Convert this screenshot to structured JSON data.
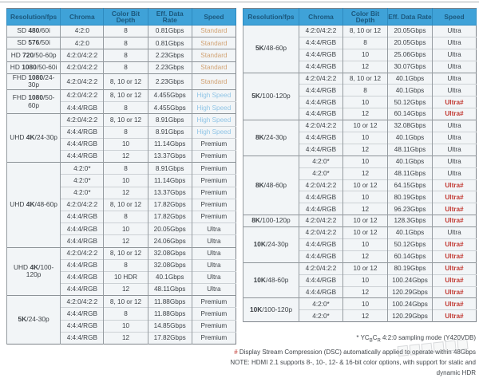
{
  "palette": {
    "header_bg": "#3fa2d8",
    "header_text": "#1b587d",
    "cell_bg": "#f2f5f7",
    "cell_text": "#3d4247",
    "speed_standard": "#d1a273",
    "speed_high": "#90c5e6",
    "speed_premium_ultra": "#3d4247",
    "speed_ultra_dsc": "#c23b34",
    "group_border": "#8d9398",
    "row_border": "#ccd1d5"
  },
  "columns": [
    "Resolution/fps",
    "Chroma",
    "Color Bit Depth",
    "Eff. Data Rate",
    "Speed"
  ],
  "tables": [
    {
      "id": "left",
      "groups": [
        {
          "res": [
            "SD ",
            "480",
            "/60i"
          ],
          "rows": [
            [
              "4:2:0",
              "8",
              "0.81Gbps",
              "Standard"
            ]
          ]
        },
        {
          "res": [
            "SD ",
            "576",
            "/50i"
          ],
          "rows": [
            [
              "4:2:0",
              "8",
              "0.81Gbps",
              "Standard"
            ]
          ]
        },
        {
          "res": [
            "HD ",
            "720",
            "/50-60p"
          ],
          "rows": [
            [
              "4:2:0/4:2:2",
              "8",
              "2.23Gbps",
              "Standard"
            ]
          ]
        },
        {
          "res": [
            "HD ",
            "1080",
            "/50-60i"
          ],
          "rows": [
            [
              "4:2:0/4:2:2",
              "8",
              "2.23Gbps",
              "Standard"
            ]
          ]
        },
        {
          "res": [
            "FHD ",
            "1080",
            "/24-30p"
          ],
          "rows": [
            [
              "4:2:0/4:2:2",
              "8, 10 or 12",
              "2.23Gbps",
              "Standard"
            ]
          ]
        },
        {
          "res": [
            "FHD ",
            "1080",
            "/50-60p"
          ],
          "rows": [
            [
              "4:2:0/4:2:2",
              "8, 10 or 12",
              "4.455Gbps",
              "High Speed"
            ],
            [
              "4:4:4/RGB",
              "8",
              "4.455Gbps",
              "High Speed"
            ]
          ]
        },
        {
          "res": [
            "UHD ",
            "4K",
            "/24-30p"
          ],
          "rows": [
            [
              "4:2:0/4:2:2",
              "8, 10 or 12",
              "8.91Gbps",
              "High Speed"
            ],
            [
              "4:4:4/RGB",
              "8",
              "8.91Gbps",
              "High Speed"
            ],
            [
              "4:4:4/RGB",
              "10",
              "11.14Gbps",
              "Premium"
            ],
            [
              "4:4:4/RGB",
              "12",
              "13.37Gbps",
              "Premium"
            ]
          ]
        },
        {
          "res": [
            "UHD ",
            "4K",
            "/48-60p"
          ],
          "rows": [
            [
              "4:2:0*",
              "8",
              "8.91Gbps",
              "Premium"
            ],
            [
              "4:2:0*",
              "10",
              "11.14Gbps",
              "Premium"
            ],
            [
              "4:2:0*",
              "12",
              "13.37Gbps",
              "Premium"
            ],
            [
              "4:2:0/4:2:2",
              "8, 10 or 12",
              "17.82Gbps",
              "Premium"
            ],
            [
              "4:4:4/RGB",
              "8",
              "17.82Gbps",
              "Premium"
            ],
            [
              "4:4:4/RGB",
              "10",
              "20.05Gbps",
              "Ultra"
            ],
            [
              "4:4:4/RGB",
              "12",
              "24.06Gbps",
              "Ultra"
            ]
          ]
        },
        {
          "res": [
            "UHD ",
            "4K",
            "/100-120p"
          ],
          "rows": [
            [
              "4:2:0/4:2:2",
              "8, 10 or 12",
              "32.08Gbps",
              "Ultra"
            ],
            [
              "4:4:4/RGB",
              "8",
              "32.08Gbps",
              "Ultra"
            ],
            [
              "4:4:4/RGB",
              "10 HDR",
              "40.1Gbps",
              "Ultra"
            ],
            [
              "4:4:4/RGB",
              "12",
              "48.11Gbps",
              "Ultra"
            ]
          ]
        },
        {
          "res": [
            "",
            "5K",
            "/24-30p"
          ],
          "rows": [
            [
              "4:2:0/4:2:2",
              "8, 10 or 12",
              "11.88Gbps",
              "Premium"
            ],
            [
              "4:4:4/RGB",
              "8",
              "11.88Gbps",
              "Premium"
            ],
            [
              "4:4:4/RGB",
              "10",
              "14.85Gbps",
              "Premium"
            ],
            [
              "4:4:4/RGB",
              "12",
              "17.82Gbps",
              "Premium"
            ]
          ]
        }
      ]
    },
    {
      "id": "right",
      "groups": [
        {
          "res": [
            "",
            "5K",
            "/48-60p"
          ],
          "rows": [
            [
              "4:2:0/4:2:2",
              "8, 10 or 12",
              "20.05Gbps",
              "Ultra"
            ],
            [
              "4:4:4/RGB",
              "8",
              "20.05Gbps",
              "Ultra"
            ],
            [
              "4:4:4/RGB",
              "10",
              "25.06Gbps",
              "Ultra"
            ],
            [
              "4:4:4/RGB",
              "12",
              "30.07Gbps",
              "Ultra"
            ]
          ]
        },
        {
          "res": [
            "",
            "5K",
            "/100-120p"
          ],
          "rows": [
            [
              "4:2:0/4:2:2",
              "8, 10 or 12",
              "40.1Gbps",
              "Ultra"
            ],
            [
              "4:4:4/RGB",
              "8",
              "40.1Gbps",
              "Ultra"
            ],
            [
              "4:4:4/RGB",
              "10",
              "50.12Gbps",
              "Ultra#"
            ],
            [
              "4:4:4/RGB",
              "12",
              "60.14Gbps",
              "Ultra#"
            ]
          ]
        },
        {
          "res": [
            "",
            "8K",
            "/24-30p"
          ],
          "rows": [
            [
              "4:2:0/4:2:2",
              "10 or 12",
              "32.08Gbps",
              "Ultra"
            ],
            [
              "4:4:4/RGB",
              "10",
              "40.1Gbps",
              "Ultra"
            ],
            [
              "4:4:4/RGB",
              "12",
              "48.11Gbps",
              "Ultra"
            ]
          ]
        },
        {
          "res": [
            "",
            "8K",
            "/48-60p"
          ],
          "rows": [
            [
              "4:2:0*",
              "10",
              "40.1Gbps",
              "Ultra"
            ],
            [
              "4:2:0*",
              "12",
              "48.11Gbps",
              "Ultra"
            ],
            [
              "4:2:0/4:2:2",
              "10 or 12",
              "64.15Gbps",
              "Ultra#"
            ],
            [
              "4:4:4/RGB",
              "10",
              "80.19Gbps",
              "Ultra#"
            ],
            [
              "4:4:4/RGB",
              "12",
              "96.23Gbps",
              "Ultra#"
            ]
          ]
        },
        {
          "res": [
            "",
            "8K",
            "/100-120p"
          ],
          "rows": [
            [
              "4:2:0/4:2:2",
              "10 or 12",
              "128.3Gbps",
              "Ultra#"
            ]
          ]
        },
        {
          "res": [
            "",
            "10K",
            "/24-30p"
          ],
          "rows": [
            [
              "4:2:0/4:2:2",
              "10 or 12",
              "40.1Gbps",
              "Ultra"
            ],
            [
              "4:4:4/RGB",
              "10",
              "50.12Gbps",
              "Ultra#"
            ],
            [
              "4:4:4/RGB",
              "12",
              "60.14Gbps",
              "Ultra#"
            ]
          ]
        },
        {
          "res": [
            "",
            "10K",
            "/48-60p"
          ],
          "rows": [
            [
              "4:2:0/4:2:2",
              "10 or 12",
              "80.19Gbps",
              "Ultra#"
            ],
            [
              "4:4:4/RGB",
              "10",
              "100.24Gbps",
              "Ultra#"
            ],
            [
              "4:4:4/RGB",
              "12",
              "120.29Gbps",
              "Ultra#"
            ]
          ]
        },
        {
          "res": [
            "",
            "10K",
            "/100-120p"
          ],
          "rows": [
            [
              "4:2:0*",
              "10",
              "100.24Gbps",
              "Ultra#"
            ],
            [
              "4:2:0*",
              "12",
              "120.29Gbps",
              "Ultra#"
            ]
          ]
        }
      ]
    }
  ],
  "footnotes": {
    "sampling": {
      "pre": "* YC",
      "sub_b": "B",
      "mid": "C",
      "sub_r": "R",
      "post": " 4:2:0 sampling mode (Y420VDB)"
    },
    "dsc": {
      "hash": "#",
      "text": " Display Stream Compression (DSC) automatically applied to operate within 48Gbps"
    },
    "note": "NOTE: HDMI 2.1 supports 8-, 10-, 12- & 16-bit color options, with support for static and dynamic HDR"
  }
}
